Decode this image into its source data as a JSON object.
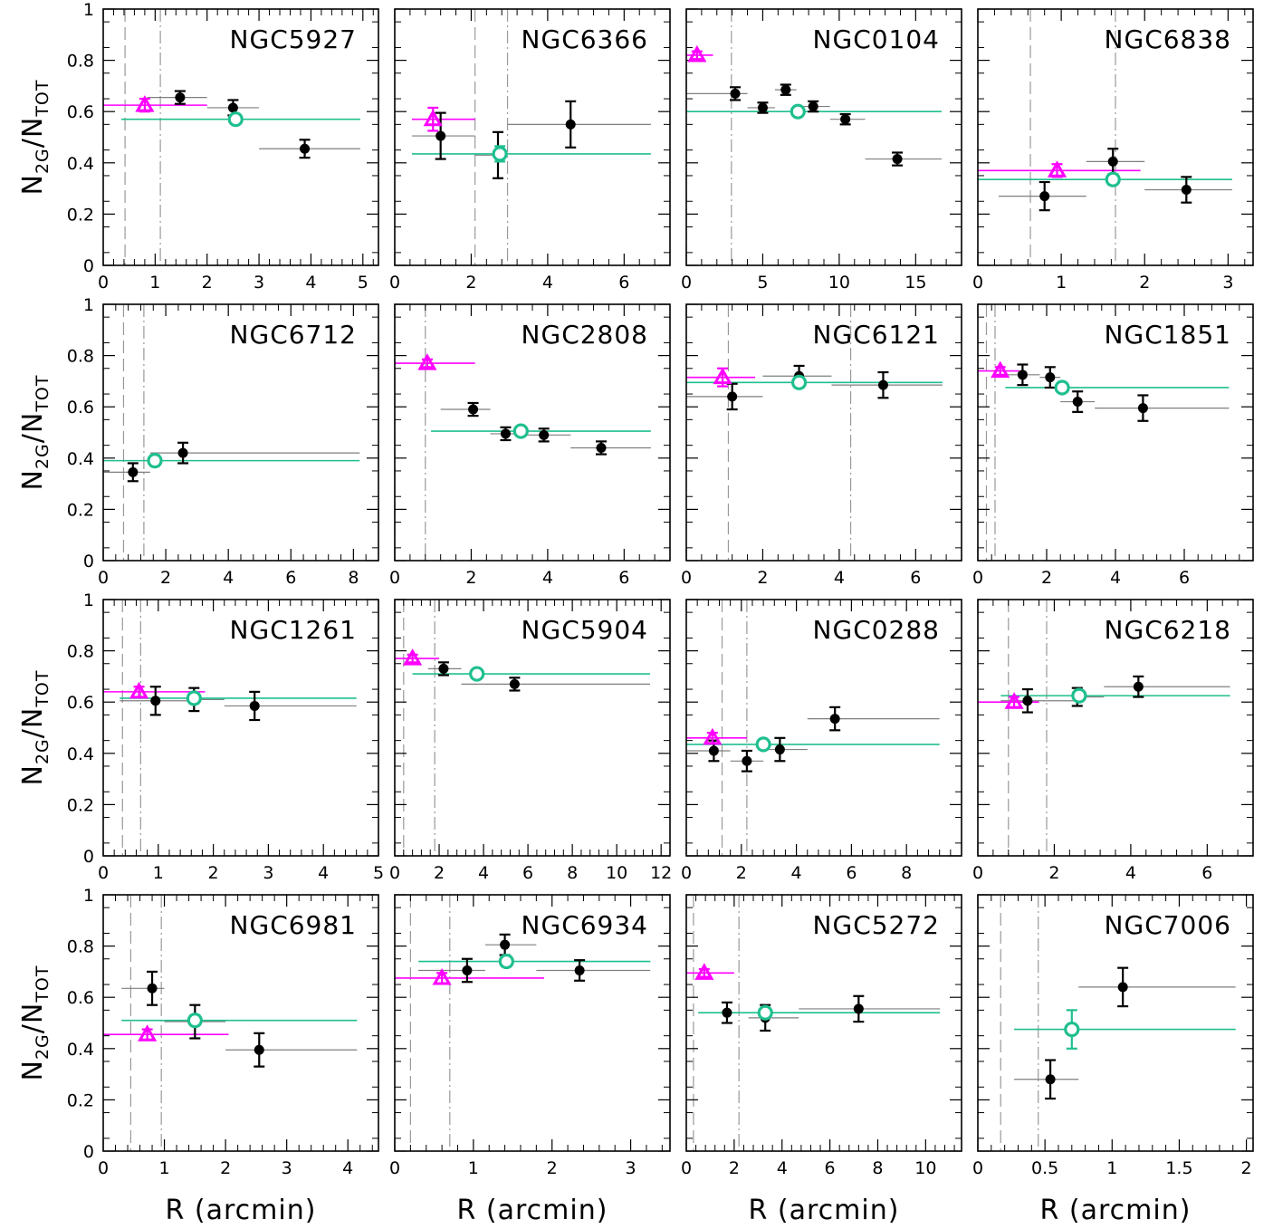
{
  "xlabel": "R (arcmin)",
  "ylabel": {
    "main": "N",
    "sub1": "2G",
    "mid": "/N",
    "sub2": "TOT"
  },
  "colors": {
    "black": "#000000",
    "magenta": "#ff00ff",
    "green": "#1fbf8f",
    "gray": "#7f7f7f"
  },
  "chart_data": [
    {
      "type": "scatter",
      "title": "NGC5927",
      "xlim": [
        0,
        5.3
      ],
      "ylim": [
        0,
        1
      ],
      "xticks": [
        0,
        1,
        2,
        3,
        4,
        5
      ],
      "yticks": [
        0,
        0.2,
        0.4,
        0.6,
        0.8,
        1
      ],
      "vlines": [
        0.42,
        1.1
      ],
      "black": [
        {
          "x": 1.48,
          "y": 0.655,
          "err": 0.025,
          "x0": 0.85,
          "x1": 2.0
        },
        {
          "x": 2.5,
          "y": 0.615,
          "err": 0.03,
          "x0": 2.0,
          "x1": 3.0
        },
        {
          "x": 3.88,
          "y": 0.455,
          "err": 0.035,
          "x0": 3.0,
          "x1": 4.95
        }
      ],
      "magenta": {
        "x": 0.8,
        "y": 0.625,
        "err": 0.025,
        "x0": 0.0,
        "x1": 2.0
      },
      "green": {
        "x": 2.55,
        "y": 0.57,
        "err": 0.012,
        "x0": 0.35,
        "x1": 4.95
      }
    },
    {
      "type": "scatter",
      "title": "NGC6366",
      "xlim": [
        0,
        7.2
      ],
      "ylim": [
        0,
        1
      ],
      "xticks": [
        0,
        2,
        4,
        6
      ],
      "yticks": [
        0,
        0.2,
        0.4,
        0.6,
        0.8,
        1
      ],
      "vlines": [
        2.1,
        2.95
      ],
      "black": [
        {
          "x": 1.2,
          "y": 0.505,
          "err": 0.09,
          "x0": 0.45,
          "x1": 2.1
        },
        {
          "x": 2.7,
          "y": 0.43,
          "err": 0.09,
          "x0": 2.1,
          "x1": 2.95
        },
        {
          "x": 4.6,
          "y": 0.55,
          "err": 0.09,
          "x0": 2.95,
          "x1": 6.7
        }
      ],
      "magenta": {
        "x": 1.0,
        "y": 0.57,
        "err": 0.045,
        "x0": 0.45,
        "x1": 2.1
      },
      "green": {
        "x": 2.75,
        "y": 0.435,
        "err": 0.03,
        "x0": 0.45,
        "x1": 6.7
      }
    },
    {
      "type": "scatter",
      "title": "NGC0104",
      "xlim": [
        0,
        18
      ],
      "ylim": [
        0,
        1
      ],
      "xticks": [
        0,
        5,
        10,
        15
      ],
      "yticks": [
        0,
        0.2,
        0.4,
        0.6,
        0.8,
        1
      ],
      "vlines": [
        0.0,
        2.95
      ],
      "black": [
        {
          "x": 3.2,
          "y": 0.67,
          "err": 0.025,
          "x0": 0.0,
          "x1": 4.0
        },
        {
          "x": 5.0,
          "y": 0.615,
          "err": 0.02,
          "x0": 4.0,
          "x1": 5.8
        },
        {
          "x": 6.5,
          "y": 0.685,
          "err": 0.02,
          "x0": 5.8,
          "x1": 7.2
        },
        {
          "x": 8.3,
          "y": 0.62,
          "err": 0.02,
          "x0": 7.2,
          "x1": 9.4
        },
        {
          "x": 10.4,
          "y": 0.57,
          "err": 0.02,
          "x0": 9.4,
          "x1": 11.7
        },
        {
          "x": 13.8,
          "y": 0.415,
          "err": 0.025,
          "x0": 11.7,
          "x1": 16.7
        }
      ],
      "magenta": {
        "x": 0.7,
        "y": 0.82,
        "err": 0.015,
        "x0": 0.0,
        "x1": 1.75
      },
      "green": {
        "x": 7.3,
        "y": 0.6,
        "err": 0.012,
        "x0": 0.0,
        "x1": 16.7
      }
    },
    {
      "type": "scatter",
      "title": "NGC6838",
      "xlim": [
        0,
        3.3
      ],
      "ylim": [
        0,
        1
      ],
      "xticks": [
        0,
        1,
        2,
        3
      ],
      "yticks": [
        0,
        0.2,
        0.4,
        0.6,
        0.8,
        1
      ],
      "vlines": [
        0.63,
        1.65
      ],
      "black": [
        {
          "x": 0.8,
          "y": 0.27,
          "err": 0.055,
          "x0": 0.25,
          "x1": 1.3
        },
        {
          "x": 1.62,
          "y": 0.405,
          "err": 0.05,
          "x0": 1.3,
          "x1": 2.0
        },
        {
          "x": 2.5,
          "y": 0.295,
          "err": 0.05,
          "x0": 2.0,
          "x1": 3.05
        }
      ],
      "magenta": {
        "x": 0.95,
        "y": 0.37,
        "err": 0.025,
        "x0": 0.0,
        "x1": 1.95
      },
      "green": {
        "x": 1.62,
        "y": 0.335,
        "err": 0.02,
        "x0": 0.0,
        "x1": 3.05
      }
    },
    {
      "type": "scatter",
      "title": "NGC6712",
      "xlim": [
        0,
        8.8
      ],
      "ylim": [
        0,
        1
      ],
      "xticks": [
        0,
        2,
        4,
        6,
        8
      ],
      "yticks": [
        0,
        0.2,
        0.4,
        0.6,
        0.8,
        1
      ],
      "vlines": [
        0.65,
        1.3
      ],
      "black": [
        {
          "x": 0.95,
          "y": 0.345,
          "err": 0.035,
          "x0": 0.0,
          "x1": 1.5
        },
        {
          "x": 2.55,
          "y": 0.42,
          "err": 0.04,
          "x0": 1.5,
          "x1": 8.2
        }
      ],
      "magenta": null,
      "green": {
        "x": 1.65,
        "y": 0.39,
        "err": 0.02,
        "x0": 0.0,
        "x1": 8.2
      }
    },
    {
      "type": "scatter",
      "title": "NGC2808",
      "xlim": [
        0,
        7.2
      ],
      "ylim": [
        0,
        1
      ],
      "xticks": [
        0,
        2,
        4,
        6
      ],
      "yticks": [
        0,
        0.2,
        0.4,
        0.6,
        0.8,
        1
      ],
      "vlines": [
        0.0,
        0.8
      ],
      "black": [
        {
          "x": 2.05,
          "y": 0.59,
          "err": 0.025,
          "x0": 1.2,
          "x1": 2.5
        },
        {
          "x": 2.9,
          "y": 0.495,
          "err": 0.025,
          "x0": 2.5,
          "x1": 3.3
        },
        {
          "x": 3.9,
          "y": 0.49,
          "err": 0.025,
          "x0": 3.3,
          "x1": 4.6
        },
        {
          "x": 5.4,
          "y": 0.44,
          "err": 0.025,
          "x0": 4.6,
          "x1": 6.7
        }
      ],
      "magenta": {
        "x": 0.85,
        "y": 0.77,
        "err": 0.015,
        "x0": 0.0,
        "x1": 2.1
      },
      "green": {
        "x": 3.3,
        "y": 0.505,
        "err": 0.01,
        "x0": 0.95,
        "x1": 6.7
      }
    },
    {
      "type": "scatter",
      "title": "NGC6121",
      "xlim": [
        0,
        7.2
      ],
      "ylim": [
        0,
        1
      ],
      "xticks": [
        0,
        2,
        4,
        6
      ],
      "yticks": [
        0,
        0.2,
        0.4,
        0.6,
        0.8,
        1
      ],
      "vlines": [
        1.1,
        4.3
      ],
      "black": [
        {
          "x": 1.2,
          "y": 0.64,
          "err": 0.05,
          "x0": 0.0,
          "x1": 2.0
        },
        {
          "x": 2.95,
          "y": 0.72,
          "err": 0.04,
          "x0": 2.0,
          "x1": 3.8
        },
        {
          "x": 5.15,
          "y": 0.685,
          "err": 0.05,
          "x0": 3.8,
          "x1": 6.7
        }
      ],
      "magenta": {
        "x": 0.95,
        "y": 0.715,
        "err": 0.035,
        "x0": 0.0,
        "x1": 1.8
      },
      "green": {
        "x": 2.95,
        "y": 0.695,
        "err": 0.02,
        "x0": 0.0,
        "x1": 6.7
      }
    },
    {
      "type": "scatter",
      "title": "NGC1851",
      "xlim": [
        0,
        8
      ],
      "ylim": [
        0,
        1
      ],
      "xticks": [
        0,
        2,
        4,
        6
      ],
      "yticks": [
        0,
        0.2,
        0.4,
        0.6,
        0.8,
        1
      ],
      "vlines": [
        0.25,
        0.5
      ],
      "black": [
        {
          "x": 1.3,
          "y": 0.725,
          "err": 0.04,
          "x0": 0.8,
          "x1": 1.8
        },
        {
          "x": 2.1,
          "y": 0.715,
          "err": 0.04,
          "x0": 1.8,
          "x1": 2.4
        },
        {
          "x": 2.9,
          "y": 0.62,
          "err": 0.04,
          "x0": 2.4,
          "x1": 3.4
        },
        {
          "x": 4.8,
          "y": 0.595,
          "err": 0.05,
          "x0": 3.4,
          "x1": 7.3
        }
      ],
      "magenta": {
        "x": 0.65,
        "y": 0.74,
        "err": 0.015,
        "x0": 0.0,
        "x1": 1.2
      },
      "green": {
        "x": 2.45,
        "y": 0.675,
        "err": 0.015,
        "x0": 0.8,
        "x1": 7.3
      }
    },
    {
      "type": "scatter",
      "title": "NGC1261",
      "xlim": [
        0,
        5
      ],
      "ylim": [
        0,
        1
      ],
      "xticks": [
        0,
        1,
        2,
        3,
        4,
        5
      ],
      "yticks": [
        0,
        0.2,
        0.4,
        0.6,
        0.8,
        1
      ],
      "vlines": [
        0.35,
        0.68
      ],
      "black": [
        {
          "x": 0.95,
          "y": 0.605,
          "err": 0.055,
          "x0": 0.3,
          "x1": 1.55
        },
        {
          "x": 1.65,
          "y": 0.61,
          "err": 0.045,
          "x0": 1.55,
          "x1": 2.2
        },
        {
          "x": 2.75,
          "y": 0.585,
          "err": 0.055,
          "x0": 2.2,
          "x1": 4.6
        }
      ],
      "magenta": {
        "x": 0.65,
        "y": 0.64,
        "err": 0.02,
        "x0": 0.0,
        "x1": 1.85
      },
      "green": {
        "x": 1.65,
        "y": 0.615,
        "err": 0.02,
        "x0": 0.3,
        "x1": 4.6
      }
    },
    {
      "type": "scatter",
      "title": "NGC5904",
      "xlim": [
        0,
        12.4
      ],
      "ylim": [
        0,
        1
      ],
      "xticks": [
        0,
        2,
        4,
        6,
        8,
        10,
        12
      ],
      "yticks": [
        0,
        0.2,
        0.4,
        0.6,
        0.8,
        1
      ],
      "vlines": [
        0.4,
        1.8
      ],
      "black": [
        {
          "x": 2.2,
          "y": 0.73,
          "err": 0.025,
          "x0": 1.5,
          "x1": 3.0
        },
        {
          "x": 5.4,
          "y": 0.67,
          "err": 0.025,
          "x0": 3.0,
          "x1": 11.5
        }
      ],
      "magenta": {
        "x": 0.8,
        "y": 0.77,
        "err": 0.015,
        "x0": 0.0,
        "x1": 2.0
      },
      "green": {
        "x": 3.7,
        "y": 0.71,
        "err": 0.015,
        "x0": 0.8,
        "x1": 11.5
      }
    },
    {
      "type": "scatter",
      "title": "NGC0288",
      "xlim": [
        0,
        10
      ],
      "ylim": [
        0,
        1
      ],
      "xticks": [
        0,
        2,
        4,
        6,
        8
      ],
      "yticks": [
        0,
        0.2,
        0.4,
        0.6,
        0.8,
        1
      ],
      "vlines": [
        1.3,
        2.2
      ],
      "black": [
        {
          "x": 1.0,
          "y": 0.41,
          "err": 0.04,
          "x0": 0.0,
          "x1": 1.6
        },
        {
          "x": 2.2,
          "y": 0.37,
          "err": 0.04,
          "x0": 1.6,
          "x1": 2.8
        },
        {
          "x": 3.4,
          "y": 0.415,
          "err": 0.045,
          "x0": 2.8,
          "x1": 4.4
        },
        {
          "x": 5.4,
          "y": 0.535,
          "err": 0.045,
          "x0": 4.4,
          "x1": 9.2
        }
      ],
      "magenta": {
        "x": 0.95,
        "y": 0.46,
        "err": 0.02,
        "x0": 0.0,
        "x1": 2.2
      },
      "green": {
        "x": 2.8,
        "y": 0.435,
        "err": 0.015,
        "x0": 0.0,
        "x1": 9.2
      }
    },
    {
      "type": "scatter",
      "title": "NGC6218",
      "xlim": [
        0,
        7.2
      ],
      "ylim": [
        0,
        1
      ],
      "xticks": [
        0,
        2,
        4,
        6
      ],
      "yticks": [
        0,
        0.2,
        0.4,
        0.6,
        0.8,
        1
      ],
      "vlines": [
        0.8,
        1.8
      ],
      "black": [
        {
          "x": 1.3,
          "y": 0.605,
          "err": 0.045,
          "x0": 0.6,
          "x1": 2.6
        },
        {
          "x": 2.6,
          "y": 0.62,
          "err": 0.035,
          "x0": 2.6,
          "x1": 3.3
        },
        {
          "x": 4.2,
          "y": 0.66,
          "err": 0.04,
          "x0": 3.3,
          "x1": 6.6
        }
      ],
      "magenta": {
        "x": 0.95,
        "y": 0.6,
        "err": 0.02,
        "x0": 0.0,
        "x1": 1.6
      },
      "green": {
        "x": 2.65,
        "y": 0.625,
        "err": 0.015,
        "x0": 0.6,
        "x1": 6.6
      }
    },
    {
      "type": "scatter",
      "title": "NGC6981",
      "xlim": [
        0,
        4.5
      ],
      "ylim": [
        0,
        1
      ],
      "xticks": [
        0,
        1,
        2,
        3,
        4
      ],
      "yticks": [
        0,
        0.2,
        0.4,
        0.6,
        0.8,
        1
      ],
      "vlines": [
        0.45,
        0.95
      ],
      "black": [
        {
          "x": 0.8,
          "y": 0.635,
          "err": 0.065,
          "x0": 0.3,
          "x1": 1.0
        },
        {
          "x": 1.5,
          "y": 0.505,
          "err": 0.065,
          "x0": 1.0,
          "x1": 2.0
        },
        {
          "x": 2.55,
          "y": 0.395,
          "err": 0.065,
          "x0": 2.0,
          "x1": 4.15
        }
      ],
      "magenta": {
        "x": 0.72,
        "y": 0.455,
        "err": 0.02,
        "x0": 0.0,
        "x1": 2.05
      },
      "green": {
        "x": 1.5,
        "y": 0.51,
        "err": 0.02,
        "x0": 0.3,
        "x1": 4.15
      }
    },
    {
      "type": "scatter",
      "title": "NGC6934",
      "xlim": [
        0,
        3.5
      ],
      "ylim": [
        0,
        1
      ],
      "xticks": [
        0,
        1,
        2,
        3
      ],
      "yticks": [
        0,
        0.2,
        0.4,
        0.6,
        0.8,
        1
      ],
      "vlines": [
        0.2,
        0.7
      ],
      "black": [
        {
          "x": 0.92,
          "y": 0.705,
          "err": 0.045,
          "x0": 0.3,
          "x1": 1.15
        },
        {
          "x": 1.4,
          "y": 0.805,
          "err": 0.04,
          "x0": 1.15,
          "x1": 1.8
        },
        {
          "x": 2.35,
          "y": 0.705,
          "err": 0.04,
          "x0": 1.8,
          "x1": 3.25
        }
      ],
      "magenta": {
        "x": 0.6,
        "y": 0.675,
        "err": 0.02,
        "x0": 0.0,
        "x1": 1.9
      },
      "green": {
        "x": 1.42,
        "y": 0.74,
        "err": 0.02,
        "x0": 0.3,
        "x1": 3.25
      }
    },
    {
      "type": "scatter",
      "title": "NGC5272",
      "xlim": [
        0,
        11.5
      ],
      "ylim": [
        0,
        1
      ],
      "xticks": [
        0,
        2,
        4,
        6,
        8,
        10
      ],
      "yticks": [
        0,
        0.2,
        0.4,
        0.6,
        0.8,
        1
      ],
      "vlines": [
        0.3,
        2.2
      ],
      "black": [
        {
          "x": 1.7,
          "y": 0.54,
          "err": 0.04,
          "x0": 0.5,
          "x1": 2.6
        },
        {
          "x": 3.3,
          "y": 0.52,
          "err": 0.05,
          "x0": 2.6,
          "x1": 4.7
        },
        {
          "x": 7.2,
          "y": 0.555,
          "err": 0.05,
          "x0": 4.7,
          "x1": 10.6
        }
      ],
      "magenta": {
        "x": 0.75,
        "y": 0.695,
        "err": 0.015,
        "x0": 0.0,
        "x1": 2.0
      },
      "green": {
        "x": 3.3,
        "y": 0.54,
        "err": 0.015,
        "x0": 0.5,
        "x1": 10.6
      }
    },
    {
      "type": "scatter",
      "title": "NGC7006",
      "xlim": [
        0,
        2.05
      ],
      "ylim": [
        0,
        1
      ],
      "xticks": [
        0,
        0.5,
        1,
        1.5,
        2
      ],
      "yticks": [
        0,
        0.2,
        0.4,
        0.6,
        0.8,
        1
      ],
      "vlines": [
        0.17,
        0.45
      ],
      "black": [
        {
          "x": 0.54,
          "y": 0.28,
          "err": 0.075,
          "x0": 0.27,
          "x1": 0.75
        },
        {
          "x": 1.08,
          "y": 0.64,
          "err": 0.075,
          "x0": 0.75,
          "x1": 1.92
        }
      ],
      "magenta": null,
      "green": {
        "x": 0.7,
        "y": 0.475,
        "err": 0.075,
        "x0": 0.27,
        "x1": 1.92
      }
    }
  ]
}
